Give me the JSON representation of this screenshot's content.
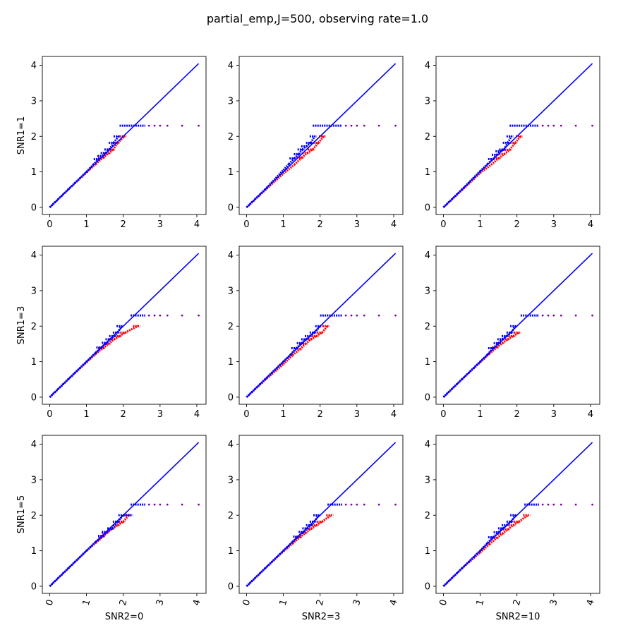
{
  "chart_data": {
    "type": "scatter",
    "title": "partial_emp,J=500, observing rate=1.0",
    "row_labels": [
      "SNR1=1",
      "SNR1=3",
      "SNR1=5"
    ],
    "col_labels": [
      "SNR2=0",
      "SNR2=3",
      "SNR2=10"
    ],
    "xlim": [
      -0.2,
      4.25
    ],
    "ylim": [
      -0.2,
      4.25
    ],
    "xticks": [
      0,
      1,
      2,
      3,
      4
    ],
    "yticks": [
      0,
      1,
      2,
      3,
      4
    ],
    "tick_labels": [
      "0",
      "1",
      "2",
      "3",
      "4"
    ],
    "diagonal": {
      "x": [
        0,
        4.05
      ],
      "y": [
        0,
        4.05
      ],
      "color": "#0000ff"
    },
    "colors": {
      "series_a": "#ff0000",
      "series_b": "#0000ff",
      "tail": "#8000a0"
    },
    "panels": [
      {
        "row": 0,
        "col": 0,
        "red": {
          "x": [
            0,
            0.5,
            1.0,
            1.25,
            1.45,
            1.6,
            1.72,
            1.85,
            2.03
          ],
          "y": [
            0,
            0.5,
            0.98,
            1.22,
            1.4,
            1.52,
            1.62,
            1.82,
            2.0
          ]
        },
        "blue": {
          "x": [
            0,
            0.5,
            1.0,
            1.18,
            1.33,
            1.43,
            1.52,
            1.62,
            1.74,
            1.87
          ],
          "y": [
            0,
            0.5,
            1.0,
            1.2,
            1.36,
            1.45,
            1.53,
            1.63,
            1.82,
            2.0
          ]
        },
        "cap": {
          "y": 2.3,
          "x": [
            1.9,
            2.6
          ],
          "tail_x": [
            2.7,
            2.85,
            3.0,
            3.2,
            3.6,
            4.05
          ]
        }
      },
      {
        "row": 0,
        "col": 1,
        "red": {
          "x": [
            0,
            0.5,
            1.0,
            1.3,
            1.5,
            1.65,
            1.8,
            1.95,
            2.1
          ],
          "y": [
            0,
            0.48,
            0.95,
            1.2,
            1.4,
            1.53,
            1.63,
            1.82,
            2.0
          ]
        },
        "blue": {
          "x": [
            0,
            0.5,
            1.0,
            1.15,
            1.3,
            1.42,
            1.52,
            1.62,
            1.75,
            1.85
          ],
          "y": [
            0,
            0.5,
            1.05,
            1.22,
            1.38,
            1.5,
            1.63,
            1.72,
            1.82,
            2.0
          ]
        },
        "cap": {
          "y": 2.3,
          "x": [
            1.8,
            2.6
          ],
          "tail_x": [
            2.7,
            2.85,
            3.0,
            3.2,
            3.6,
            4.05
          ]
        }
      },
      {
        "row": 0,
        "col": 2,
        "red": {
          "x": [
            0,
            0.5,
            1.0,
            1.3,
            1.5,
            1.65,
            1.8,
            1.95,
            2.1
          ],
          "y": [
            0,
            0.48,
            0.97,
            1.2,
            1.38,
            1.5,
            1.62,
            1.82,
            2.0
          ]
        },
        "blue": {
          "x": [
            0,
            0.5,
            1.0,
            1.2,
            1.35,
            1.45,
            1.55,
            1.65,
            1.75,
            1.85
          ],
          "y": [
            0,
            0.5,
            1.02,
            1.22,
            1.36,
            1.48,
            1.58,
            1.63,
            1.82,
            2.0
          ]
        },
        "cap": {
          "y": 2.3,
          "x": [
            1.8,
            2.6
          ],
          "tail_x": [
            2.7,
            2.85,
            3.0,
            3.2,
            3.6,
            4.05
          ]
        }
      },
      {
        "row": 1,
        "col": 0,
        "red": {
          "x": [
            0,
            0.5,
            1.0,
            1.25,
            1.45,
            1.6,
            1.75,
            1.9,
            2.05,
            2.4
          ],
          "y": [
            0,
            0.5,
            0.98,
            1.22,
            1.38,
            1.5,
            1.63,
            1.72,
            1.82,
            2.0
          ]
        },
        "blue": {
          "x": [
            0,
            0.5,
            1.0,
            1.25,
            1.4,
            1.55,
            1.65,
            1.75,
            1.85,
            1.95
          ],
          "y": [
            0,
            0.5,
            1.0,
            1.25,
            1.4,
            1.53,
            1.63,
            1.72,
            1.82,
            2.0
          ]
        },
        "cap": {
          "y": 2.3,
          "x": [
            2.2,
            2.6
          ],
          "tail_x": [
            2.7,
            2.85,
            3.0,
            3.2,
            3.6,
            4.05
          ]
        }
      },
      {
        "row": 1,
        "col": 1,
        "red": {
          "x": [
            0,
            0.5,
            1.0,
            1.25,
            1.45,
            1.6,
            1.75,
            1.9,
            2.05,
            2.2
          ],
          "y": [
            0,
            0.48,
            0.93,
            1.18,
            1.35,
            1.5,
            1.63,
            1.72,
            1.82,
            2.0
          ]
        },
        "blue": {
          "x": [
            0,
            0.5,
            1.0,
            1.2,
            1.35,
            1.5,
            1.62,
            1.72,
            1.85,
            2.0
          ],
          "y": [
            0,
            0.5,
            1.0,
            1.2,
            1.38,
            1.52,
            1.63,
            1.72,
            1.82,
            2.0
          ]
        },
        "cap": {
          "y": 2.3,
          "x": [
            2.0,
            2.6
          ],
          "tail_x": [
            2.7,
            2.85,
            3.0,
            3.2,
            3.6,
            4.05
          ]
        }
      },
      {
        "row": 1,
        "col": 2,
        "red": {
          "x": [
            0,
            0.5,
            1.0,
            1.25,
            1.45,
            1.6,
            1.75,
            1.9,
            2.05
          ],
          "y": [
            0,
            0.5,
            0.98,
            1.22,
            1.4,
            1.52,
            1.63,
            1.72,
            1.82
          ]
        },
        "blue": {
          "x": [
            0,
            0.5,
            1.0,
            1.2,
            1.35,
            1.5,
            1.6,
            1.72,
            1.85,
            1.95
          ],
          "y": [
            0,
            0.5,
            1.0,
            1.2,
            1.38,
            1.52,
            1.63,
            1.72,
            1.82,
            2.0
          ]
        },
        "cap": {
          "y": 2.3,
          "x": [
            2.1,
            2.6
          ],
          "tail_x": [
            2.7,
            2.85,
            3.0,
            3.2,
            3.6,
            4.05
          ]
        }
      },
      {
        "row": 2,
        "col": 0,
        "red": {
          "x": [
            0,
            0.5,
            1.0,
            1.25,
            1.45,
            1.55,
            1.7,
            1.85,
            2.0,
            2.15
          ],
          "y": [
            0,
            0.5,
            1.0,
            1.22,
            1.4,
            1.5,
            1.62,
            1.72,
            1.82,
            2.0
          ]
        },
        "blue": {
          "x": [
            0,
            0.5,
            1.0,
            1.25,
            1.45,
            1.55,
            1.7,
            1.85,
            2.0,
            2.2
          ],
          "y": [
            0,
            0.5,
            1.0,
            1.25,
            1.42,
            1.53,
            1.63,
            1.82,
            2.0,
            2.0
          ]
        },
        "cap": {
          "y": 2.3,
          "x": [
            2.2,
            2.6
          ],
          "tail_x": [
            2.7,
            2.85,
            3.0,
            3.2,
            3.6,
            4.05
          ]
        }
      },
      {
        "row": 2,
        "col": 1,
        "red": {
          "x": [
            0,
            0.5,
            1.0,
            1.25,
            1.45,
            1.6,
            1.75,
            1.9,
            2.05,
            2.3
          ],
          "y": [
            0,
            0.5,
            0.98,
            1.2,
            1.38,
            1.5,
            1.62,
            1.72,
            1.82,
            2.0
          ]
        },
        "blue": {
          "x": [
            0,
            0.5,
            1.0,
            1.25,
            1.4,
            1.55,
            1.65,
            1.75,
            1.85,
            1.95
          ],
          "y": [
            0,
            0.5,
            1.0,
            1.25,
            1.4,
            1.53,
            1.63,
            1.72,
            1.82,
            2.0
          ]
        },
        "cap": {
          "y": 2.3,
          "x": [
            2.2,
            2.6
          ],
          "tail_x": [
            2.7,
            2.85,
            3.0,
            3.2,
            3.6,
            4.05
          ]
        }
      },
      {
        "row": 2,
        "col": 2,
        "red": {
          "x": [
            0,
            0.5,
            1.0,
            1.25,
            1.45,
            1.6,
            1.75,
            1.9,
            2.05,
            2.3
          ],
          "y": [
            0,
            0.5,
            0.95,
            1.18,
            1.36,
            1.48,
            1.6,
            1.72,
            1.82,
            2.0
          ]
        },
        "blue": {
          "x": [
            0,
            0.5,
            1.0,
            1.2,
            1.35,
            1.5,
            1.62,
            1.72,
            1.85,
            1.95
          ],
          "y": [
            0,
            0.5,
            1.0,
            1.22,
            1.38,
            1.52,
            1.63,
            1.72,
            1.82,
            2.0
          ]
        },
        "cap": {
          "y": 2.3,
          "x": [
            2.2,
            2.6
          ],
          "tail_x": [
            2.7,
            2.85,
            3.0,
            3.2,
            3.6,
            4.05
          ]
        }
      }
    ]
  }
}
